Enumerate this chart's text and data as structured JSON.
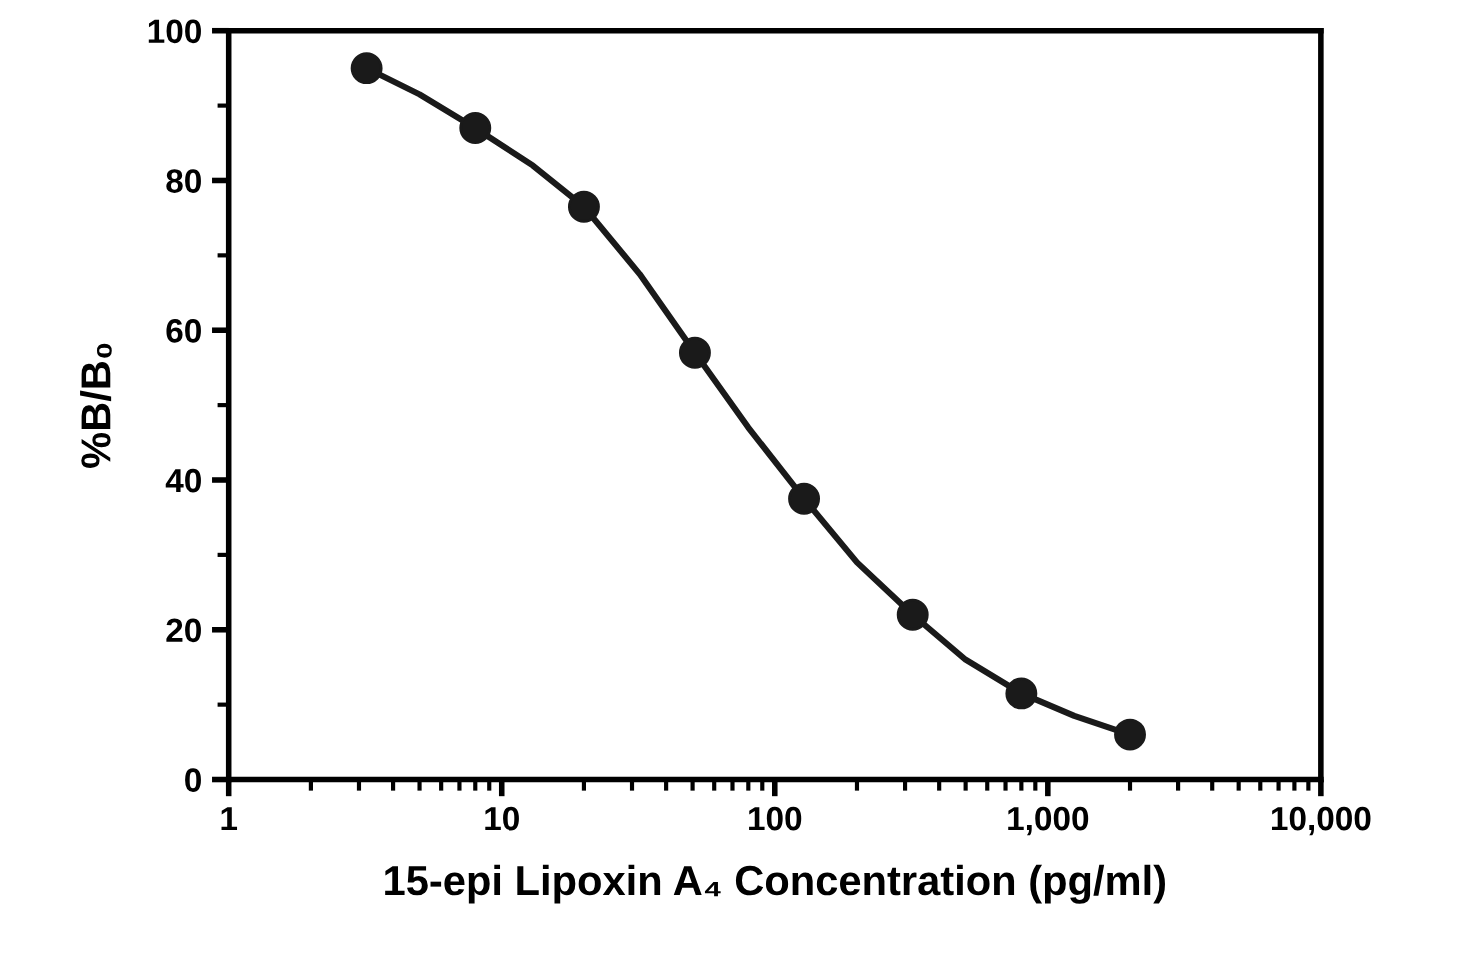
{
  "chart_data": {
    "type": "scatter",
    "xlabel": "15-epi Lipoxin A₄ Concentration (pg/ml)",
    "ylabel": "%B/B₀",
    "log": "x",
    "xlim": [
      1,
      10000
    ],
    "xticks": [
      1,
      10,
      100,
      {
        "value": 1000,
        "label": "1,000"
      },
      {
        "value": 10000,
        "label": "10,000"
      }
    ],
    "ylim": [
      0,
      100
    ],
    "yticks": [
      0,
      20,
      40,
      60,
      80,
      100
    ],
    "grid": false,
    "legend": false,
    "series": [
      {
        "color": "#1a1a1a",
        "marker": "circle",
        "x": [
          3.2,
          8,
          20,
          51,
          128,
          320,
          800,
          2000
        ],
        "values": [
          95,
          87,
          76.5,
          57,
          37.5,
          22,
          11.5,
          6
        ]
      },
      {
        "type": "line",
        "color": "#1a1a1a",
        "marker": "none",
        "line_style": "solid",
        "x": [
          3.2,
          5,
          8,
          13,
          20,
          32,
          51,
          80,
          128,
          200,
          320,
          500,
          800,
          1250,
          2000
        ],
        "values": [
          95,
          91.5,
          87,
          82,
          76.5,
          67.5,
          57,
          47,
          37.5,
          29,
          22,
          16,
          11.5,
          8.5,
          6
        ]
      }
    ]
  }
}
